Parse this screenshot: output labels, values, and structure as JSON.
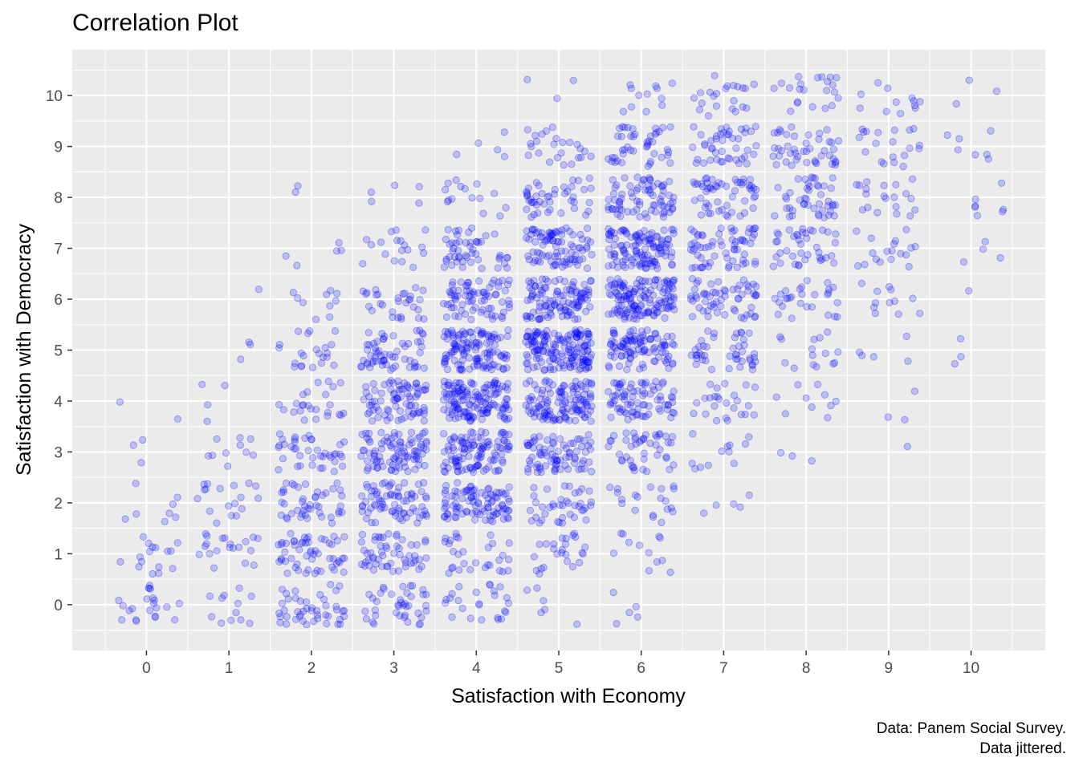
{
  "chart_data": {
    "type": "scatter",
    "title": "Correlation Plot",
    "xlabel": "Satisfaction with Economy",
    "ylabel": "Satisfaction with Democracy",
    "caption_line1": "Data: Panem Social Survey.",
    "caption_line2": "Data jittered.",
    "x_ticks": [
      "0",
      "1",
      "2",
      "3",
      "4",
      "5",
      "6",
      "7",
      "8",
      "9",
      "10"
    ],
    "y_ticks": [
      "0",
      "1",
      "2",
      "3",
      "4",
      "5",
      "6",
      "7",
      "8",
      "9",
      "10"
    ],
    "xlim": [
      -0.9,
      10.9
    ],
    "ylim": [
      -0.9,
      10.9
    ],
    "jitter": 0.4,
    "grid": true,
    "point_color": "#0000ff",
    "point_alpha": 0.2,
    "panel_background": "#ebebeb",
    "counts_note": "cell counts by [economy][democracy], estimated from point density",
    "cell_counts": [
      [
        22,
        16,
        8,
        3,
        2,
        0,
        0,
        0,
        0,
        0,
        0
      ],
      [
        12,
        20,
        18,
        10,
        4,
        3,
        1,
        0,
        0,
        0,
        0
      ],
      [
        45,
        55,
        45,
        40,
        25,
        22,
        10,
        5,
        2,
        0,
        0
      ],
      [
        40,
        55,
        75,
        90,
        80,
        60,
        30,
        18,
        5,
        0,
        0
      ],
      [
        25,
        30,
        95,
        110,
        140,
        120,
        75,
        50,
        15,
        5,
        0
      ],
      [
        6,
        25,
        40,
        80,
        120,
        160,
        110,
        90,
        45,
        25,
        3
      ],
      [
        5,
        12,
        20,
        45,
        80,
        100,
        140,
        120,
        75,
        45,
        12
      ],
      [
        0,
        0,
        5,
        12,
        25,
        45,
        60,
        65,
        55,
        45,
        22
      ],
      [
        0,
        0,
        0,
        3,
        10,
        15,
        28,
        40,
        45,
        45,
        22
      ],
      [
        0,
        0,
        0,
        1,
        3,
        5,
        12,
        18,
        20,
        20,
        12
      ],
      [
        0,
        0,
        0,
        0,
        0,
        3,
        1,
        4,
        7,
        7,
        3
      ]
    ]
  }
}
